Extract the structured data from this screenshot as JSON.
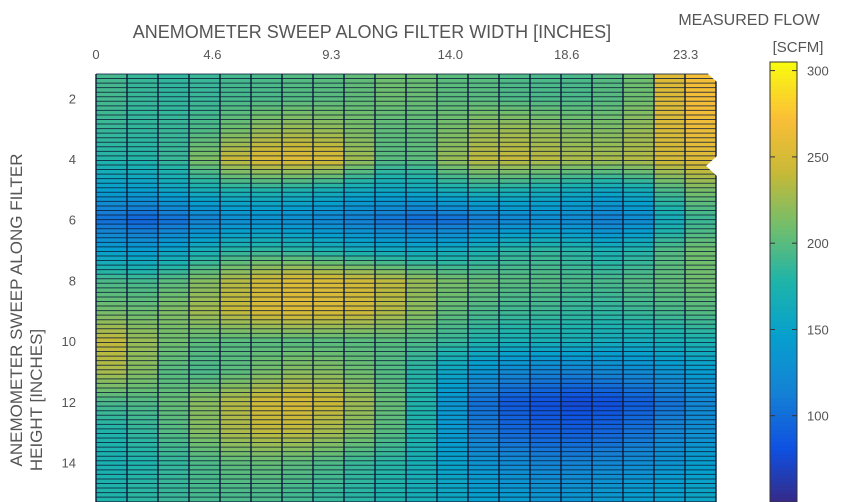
{
  "chart_data": {
    "type": "heatmap",
    "title": "",
    "xlabel": "ANEMOMETER SWEEP ALONG FILTER WIDTH [INCHES]",
    "ylabel_line1": "ANEMOMETER SWEEP ALONG FILTER",
    "ylabel_line2": "HEIGHT [INCHES]",
    "colorbar_label_line1": "MEASURED FLOW",
    "colorbar_label_line2": "[SCFM]",
    "x_ticks": [
      "0",
      "4.6",
      "9.3",
      "14.0",
      "18.6",
      "23.3"
    ],
    "x_tick_values": [
      0,
      4.6,
      9.3,
      14.0,
      18.6,
      23.3
    ],
    "y_ticks": [
      "2",
      "4",
      "6",
      "8",
      "10",
      "12",
      "14"
    ],
    "y_tick_values": [
      2,
      4,
      6,
      8,
      10,
      12,
      14
    ],
    "colorbar_ticks": [
      "300",
      "250",
      "200",
      "150",
      "100"
    ],
    "colorbar_tick_values": [
      300,
      250,
      200,
      150,
      100
    ],
    "xlim": [
      0,
      24.5
    ],
    "ylim": [
      1.2,
      15.3
    ],
    "clim": [
      50,
      305
    ],
    "colormap": "parula",
    "grid": true,
    "colorbar_placement": "right",
    "x_columns": [
      0,
      1.2,
      2.4,
      3.6,
      4.8,
      6.0,
      7.2,
      8.4,
      9.6,
      10.8,
      12.0,
      13.2,
      14.4,
      15.6,
      16.8,
      18.0,
      19.2,
      20.4,
      21.6,
      22.8,
      24.0
    ],
    "y_rows": [
      2,
      3,
      4,
      5,
      6,
      7,
      8,
      9,
      10,
      11,
      12,
      13,
      14,
      15
    ],
    "z": [
      [
        195,
        190,
        185,
        185,
        190,
        195,
        195,
        200,
        200,
        205,
        210,
        205,
        200,
        200,
        195,
        195,
        195,
        200,
        210,
        260,
        270
      ],
      [
        190,
        185,
        185,
        190,
        200,
        215,
        225,
        225,
        220,
        210,
        200,
        205,
        215,
        225,
        225,
        220,
        215,
        215,
        225,
        255,
        265
      ],
      [
        180,
        180,
        180,
        195,
        230,
        250,
        255,
        255,
        250,
        215,
        195,
        205,
        230,
        240,
        240,
        235,
        230,
        230,
        235,
        250,
        255
      ],
      [
        150,
        145,
        150,
        165,
        175,
        180,
        180,
        175,
        170,
        160,
        160,
        165,
        175,
        180,
        175,
        170,
        165,
        160,
        170,
        200,
        215
      ],
      [
        110,
        90,
        95,
        105,
        120,
        130,
        130,
        125,
        115,
        110,
        100,
        95,
        100,
        110,
        120,
        125,
        120,
        110,
        125,
        170,
        190
      ],
      [
        150,
        140,
        145,
        160,
        175,
        185,
        185,
        180,
        170,
        165,
        160,
        160,
        165,
        175,
        185,
        185,
        180,
        170,
        180,
        200,
        210
      ],
      [
        200,
        190,
        195,
        205,
        225,
        240,
        250,
        255,
        250,
        245,
        235,
        220,
        210,
        205,
        200,
        200,
        195,
        195,
        200,
        205,
        210
      ],
      [
        215,
        205,
        210,
        220,
        235,
        245,
        255,
        255,
        250,
        245,
        230,
        215,
        200,
        195,
        190,
        190,
        185,
        185,
        190,
        195,
        200
      ],
      [
        245,
        235,
        215,
        205,
        200,
        200,
        200,
        200,
        200,
        200,
        200,
        195,
        185,
        175,
        170,
        170,
        170,
        165,
        165,
        170,
        175
      ],
      [
        230,
        230,
        205,
        195,
        195,
        205,
        215,
        220,
        215,
        205,
        195,
        175,
        150,
        130,
        120,
        115,
        115,
        120,
        125,
        135,
        145
      ],
      [
        195,
        195,
        200,
        210,
        225,
        240,
        250,
        250,
        240,
        220,
        200,
        170,
        125,
        95,
        85,
        80,
        75,
        80,
        90,
        105,
        120
      ],
      [
        175,
        180,
        190,
        205,
        225,
        235,
        240,
        235,
        225,
        210,
        195,
        170,
        130,
        105,
        95,
        90,
        90,
        95,
        105,
        120,
        130
      ],
      [
        170,
        175,
        180,
        190,
        200,
        205,
        205,
        200,
        195,
        185,
        180,
        165,
        145,
        130,
        120,
        115,
        115,
        120,
        125,
        135,
        145
      ],
      [
        175,
        180,
        185,
        190,
        195,
        195,
        195,
        190,
        185,
        180,
        175,
        165,
        155,
        145,
        140,
        135,
        135,
        140,
        145,
        150,
        155
      ]
    ]
  }
}
